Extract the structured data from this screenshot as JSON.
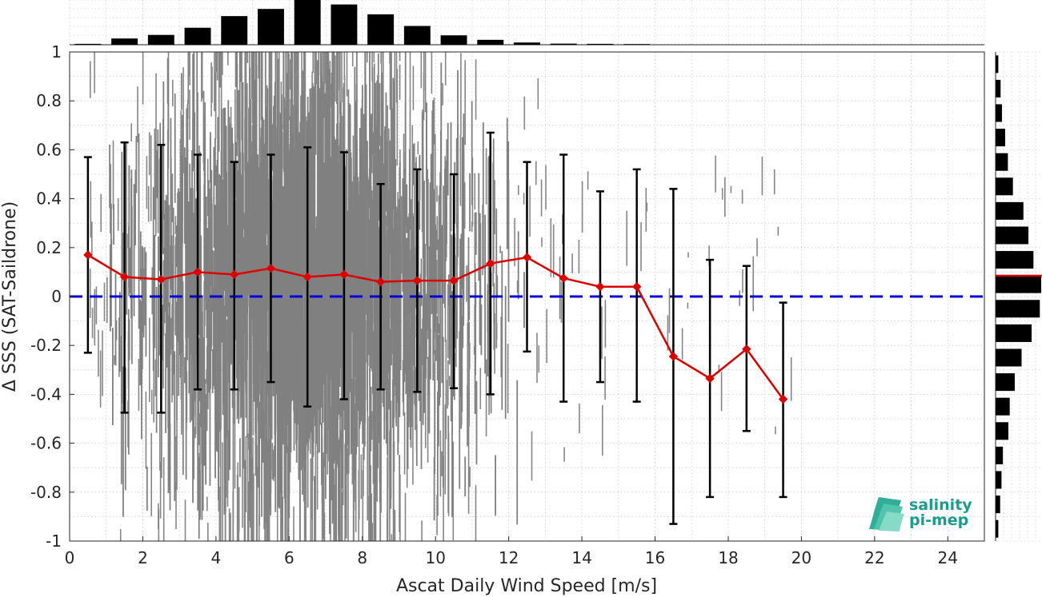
{
  "chart_data": {
    "type": "scatter",
    "title": "",
    "xlabel": "Ascat Daily Wind Speed [m/s]",
    "ylabel": "Δ SSS (SAT-Saildrone)",
    "xlim": [
      0,
      25
    ],
    "ylim": [
      -1,
      1
    ],
    "x_ticks": [
      0,
      2,
      4,
      6,
      8,
      10,
      12,
      14,
      16,
      18,
      20,
      22,
      24
    ],
    "x_tick_labels": [
      "0",
      "2",
      "4",
      "6",
      "8",
      "10",
      "12",
      "14",
      "16",
      "18",
      "20",
      "22",
      "24"
    ],
    "y_ticks": [
      1,
      0.8,
      0.6,
      0.4,
      0.2,
      0,
      -0.2,
      -0.4,
      -0.6,
      -0.8,
      -1
    ],
    "y_tick_labels": [
      "1",
      "0.8",
      "0.6",
      "0.4",
      "0.2",
      "0",
      "-0.2",
      "-0.4",
      "-0.6",
      "-0.8",
      "-1"
    ],
    "grid": true,
    "reference_line": {
      "y": 0,
      "style": "dashed",
      "color": "#0000dd"
    },
    "binned_mean": {
      "color": "#dd0000",
      "marker": "diamond",
      "x": [
        0.5,
        1.5,
        2.5,
        3.5,
        4.5,
        5.5,
        6.5,
        7.5,
        8.5,
        9.5,
        10.5,
        11.5,
        12.5,
        13.5,
        14.5,
        15.5,
        16.5,
        17.5,
        18.5,
        19.5
      ],
      "mean": [
        0.17,
        0.08,
        0.07,
        0.1,
        0.09,
        0.115,
        0.08,
        0.09,
        0.06,
        0.065,
        0.065,
        0.135,
        0.16,
        0.075,
        0.04,
        0.04,
        -0.245,
        -0.335,
        -0.215,
        -0.42
      ],
      "upper": [
        0.57,
        0.63,
        0.62,
        0.58,
        0.55,
        0.58,
        0.61,
        0.59,
        0.46,
        0.52,
        0.5,
        0.67,
        0.55,
        0.58,
        0.43,
        0.52,
        0.44,
        0.15,
        0.125,
        -0.025
      ],
      "lower": [
        -0.23,
        -0.475,
        -0.475,
        -0.38,
        -0.38,
        -0.35,
        -0.45,
        -0.42,
        -0.38,
        -0.39,
        -0.375,
        -0.4,
        -0.225,
        -0.43,
        -0.35,
        -0.43,
        -0.93,
        -0.82,
        -0.55,
        -0.82
      ]
    },
    "scatter_cloud": {
      "color": "#808080",
      "x_range": [
        0.5,
        20
      ],
      "y_range": [
        -1,
        1
      ]
    },
    "top_histogram": {
      "bins_x": [
        0.5,
        1.5,
        2.5,
        3.5,
        4.5,
        5.5,
        6.5,
        7.5,
        8.5,
        9.5,
        10.5,
        11.5,
        12.5,
        13.5,
        14.5,
        15.5
      ],
      "relative_counts": [
        0.02,
        0.14,
        0.22,
        0.38,
        0.64,
        0.8,
        1.0,
        0.9,
        0.68,
        0.42,
        0.21,
        0.11,
        0.05,
        0.025,
        0.02,
        0.015
      ]
    },
    "right_histogram": {
      "bins_y": [
        0.95,
        0.85,
        0.75,
        0.65,
        0.55,
        0.45,
        0.35,
        0.25,
        0.15,
        0.05,
        -0.05,
        -0.15,
        -0.25,
        -0.35,
        -0.45,
        -0.55,
        -0.65,
        -0.75,
        -0.85,
        -0.95
      ],
      "relative_counts": [
        0.06,
        0.11,
        0.14,
        0.21,
        0.27,
        0.38,
        0.61,
        0.72,
        0.83,
        1.0,
        0.97,
        0.79,
        0.57,
        0.42,
        0.31,
        0.28,
        0.16,
        0.13,
        0.1,
        0.06
      ],
      "mean_marker_y": 0.085
    }
  },
  "logo": {
    "line1": "salinity",
    "line2": "pi-mep",
    "color": "#1a9e8c"
  }
}
